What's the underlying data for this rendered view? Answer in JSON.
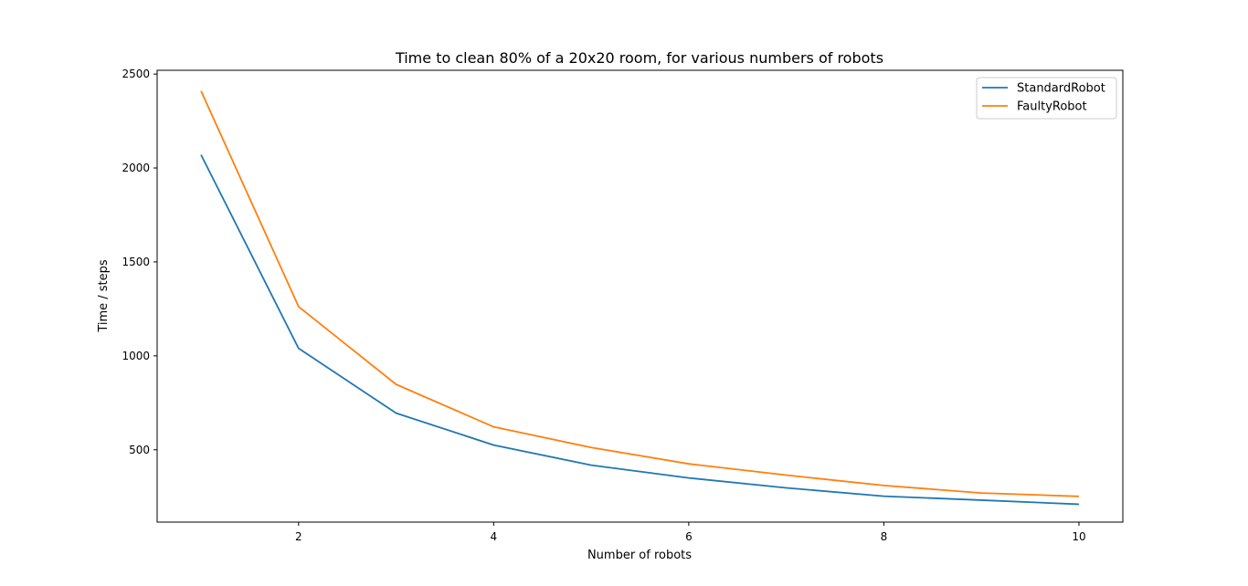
{
  "chart_data": {
    "type": "line",
    "title": "Time to clean 80% of a 20x20 room, for various numbers of robots",
    "xlabel": "Number of robots",
    "ylabel": "Time / steps",
    "x": [
      1,
      2,
      3,
      4,
      5,
      6,
      7,
      8,
      9,
      10
    ],
    "xlim": [
      0.55,
      10.45
    ],
    "ylim": [
      115,
      2520
    ],
    "xticks": [
      2,
      4,
      6,
      8,
      10
    ],
    "yticks": [
      500,
      1000,
      1500,
      2000,
      2500
    ],
    "grid": false,
    "legend_position": "top-right",
    "series": [
      {
        "name": "StandardRobot",
        "color": "#1f77b4",
        "values": [
          2070,
          1040,
          695,
          525,
          418,
          350,
          297,
          253,
          232,
          210
        ]
      },
      {
        "name": "FaultyRobot",
        "color": "#ff7f0e",
        "values": [
          2410,
          1262,
          848,
          622,
          512,
          425,
          365,
          310,
          270,
          252
        ]
      }
    ]
  }
}
